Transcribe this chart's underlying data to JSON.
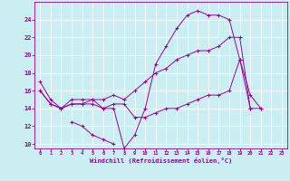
{
  "xlabel": "Windchill (Refroidissement éolien,°C)",
  "bg_color": "#cbeef3",
  "grid_color": "#ffffff",
  "line_color": "#990099",
  "xlim": [
    -0.5,
    23.5
  ],
  "ylim": [
    9.5,
    26.0
  ],
  "yticks": [
    10,
    12,
    14,
    16,
    18,
    20,
    22,
    24
  ],
  "xticks": [
    0,
    1,
    2,
    3,
    4,
    5,
    6,
    7,
    8,
    9,
    10,
    11,
    12,
    13,
    14,
    15,
    16,
    17,
    18,
    19,
    20,
    21,
    22,
    23
  ],
  "series": [
    [
      17.0,
      15.0,
      14.0,
      15.0,
      15.0,
      15.0,
      14.0,
      14.0,
      9.5,
      11.0,
      14.0,
      19.0,
      21.0,
      23.0,
      24.5,
      25.0,
      24.5,
      24.5,
      24.0,
      19.5,
      15.5,
      14.0,
      null,
      null
    ],
    [
      null,
      null,
      null,
      12.5,
      12.0,
      11.0,
      10.5,
      10.0,
      null,
      null,
      null,
      null,
      null,
      null,
      null,
      null,
      null,
      null,
      null,
      null,
      null,
      null,
      null,
      null
    ],
    [
      null,
      null,
      null,
      null,
      null,
      null,
      null,
      null,
      null,
      null,
      null,
      null,
      null,
      null,
      null,
      null,
      null,
      null,
      null,
      null,
      null,
      null,
      null,
      null
    ],
    [
      16.0,
      14.5,
      14.0,
      14.5,
      14.5,
      14.5,
      14.0,
      14.5,
      14.5,
      13.0,
      13.0,
      13.5,
      14.0,
      14.0,
      14.5,
      15.0,
      15.5,
      15.5,
      16.0,
      19.5,
      14.0,
      14.0,
      null,
      null
    ],
    [
      16.0,
      14.5,
      14.0,
      14.5,
      14.5,
      15.0,
      15.0,
      15.5,
      15.0,
      16.0,
      17.0,
      18.0,
      18.5,
      19.5,
      20.0,
      20.5,
      20.5,
      21.0,
      22.0,
      22.0,
      14.0,
      null,
      null,
      null
    ]
  ]
}
